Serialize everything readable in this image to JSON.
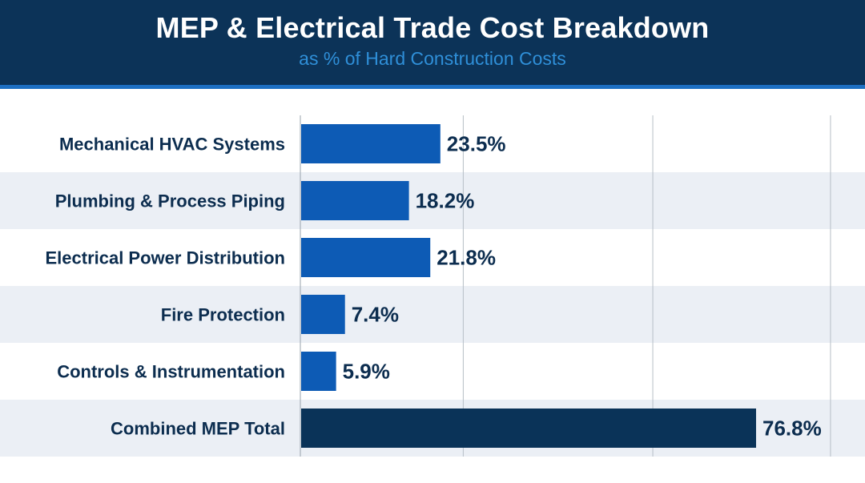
{
  "header": {
    "title": "MEP & Electrical Trade Cost Breakdown",
    "subtitle": "as % of Hard Construction Costs"
  },
  "colors": {
    "header_bg": "#0c3358",
    "accent": "#1d6fc2",
    "bar": "#0d5bb5",
    "total_bar": "#0a3358",
    "label_text": "#0c2d4f",
    "band": "#ebeff5"
  },
  "chart_data": {
    "type": "bar",
    "orientation": "horizontal",
    "title": "MEP & Electrical Trade Cost Breakdown",
    "subtitle": "as % of Hard Construction Costs",
    "categories": [
      "Mechanical HVAC Systems",
      "Plumbing & Process Piping",
      "Electrical Power Distribution",
      "Fire Protection",
      "Controls & Instrumentation",
      "Combined MEP Total"
    ],
    "values": [
      23.5,
      18.2,
      21.8,
      7.4,
      5.9,
      76.8
    ],
    "value_labels": [
      "23.5%",
      "18.2%",
      "21.8%",
      "7.4%",
      "5.9%",
      "76.8%"
    ],
    "xlim": [
      0,
      90
    ],
    "highlight_index": 5,
    "grid": true,
    "legend": "none"
  }
}
